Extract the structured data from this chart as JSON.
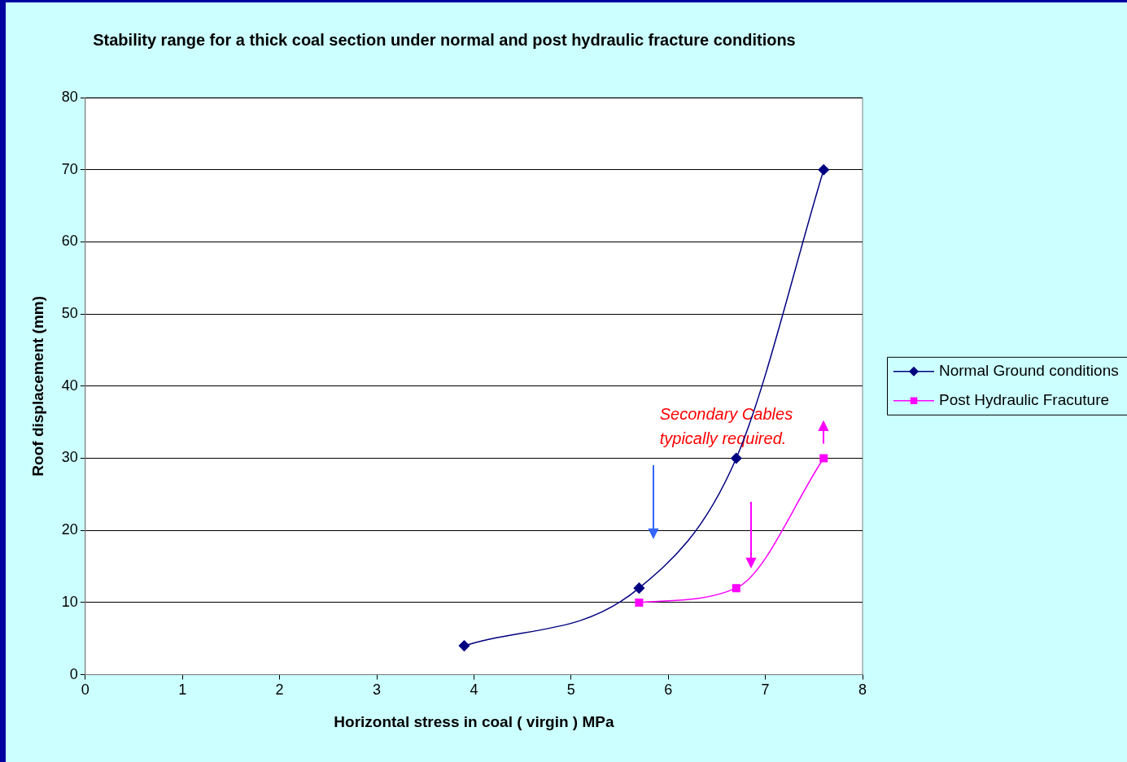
{
  "chart_data": {
    "type": "line",
    "title": "Stability range for a thick coal section under normal and post hydraulic fracture conditions",
    "xlabel": "Horizontal stress in coal ( virgin ) MPa",
    "ylabel": "Roof displacement (mm)",
    "xlim": [
      0,
      8
    ],
    "xticks": [
      0,
      1,
      2,
      3,
      4,
      5,
      6,
      7,
      8
    ],
    "ylim": [
      0,
      80
    ],
    "yticks": [
      0,
      10,
      20,
      30,
      40,
      50,
      60,
      70,
      80
    ],
    "grid": "y",
    "legend": "right",
    "series": [
      {
        "name": "Normal Ground conditions",
        "color": "#000080",
        "marker": "diamond",
        "x": [
          3.9,
          5.7,
          6.7,
          7.6
        ],
        "values": [
          4,
          12,
          30,
          70
        ]
      },
      {
        "name": "Post Hydraulic Fracuture",
        "color": "#ff00ff",
        "marker": "square",
        "x": [
          5.7,
          6.7,
          7.6
        ],
        "values": [
          10,
          12,
          30
        ]
      }
    ],
    "annotations": [
      "Secondary Cables\ntypically required."
    ]
  }
}
